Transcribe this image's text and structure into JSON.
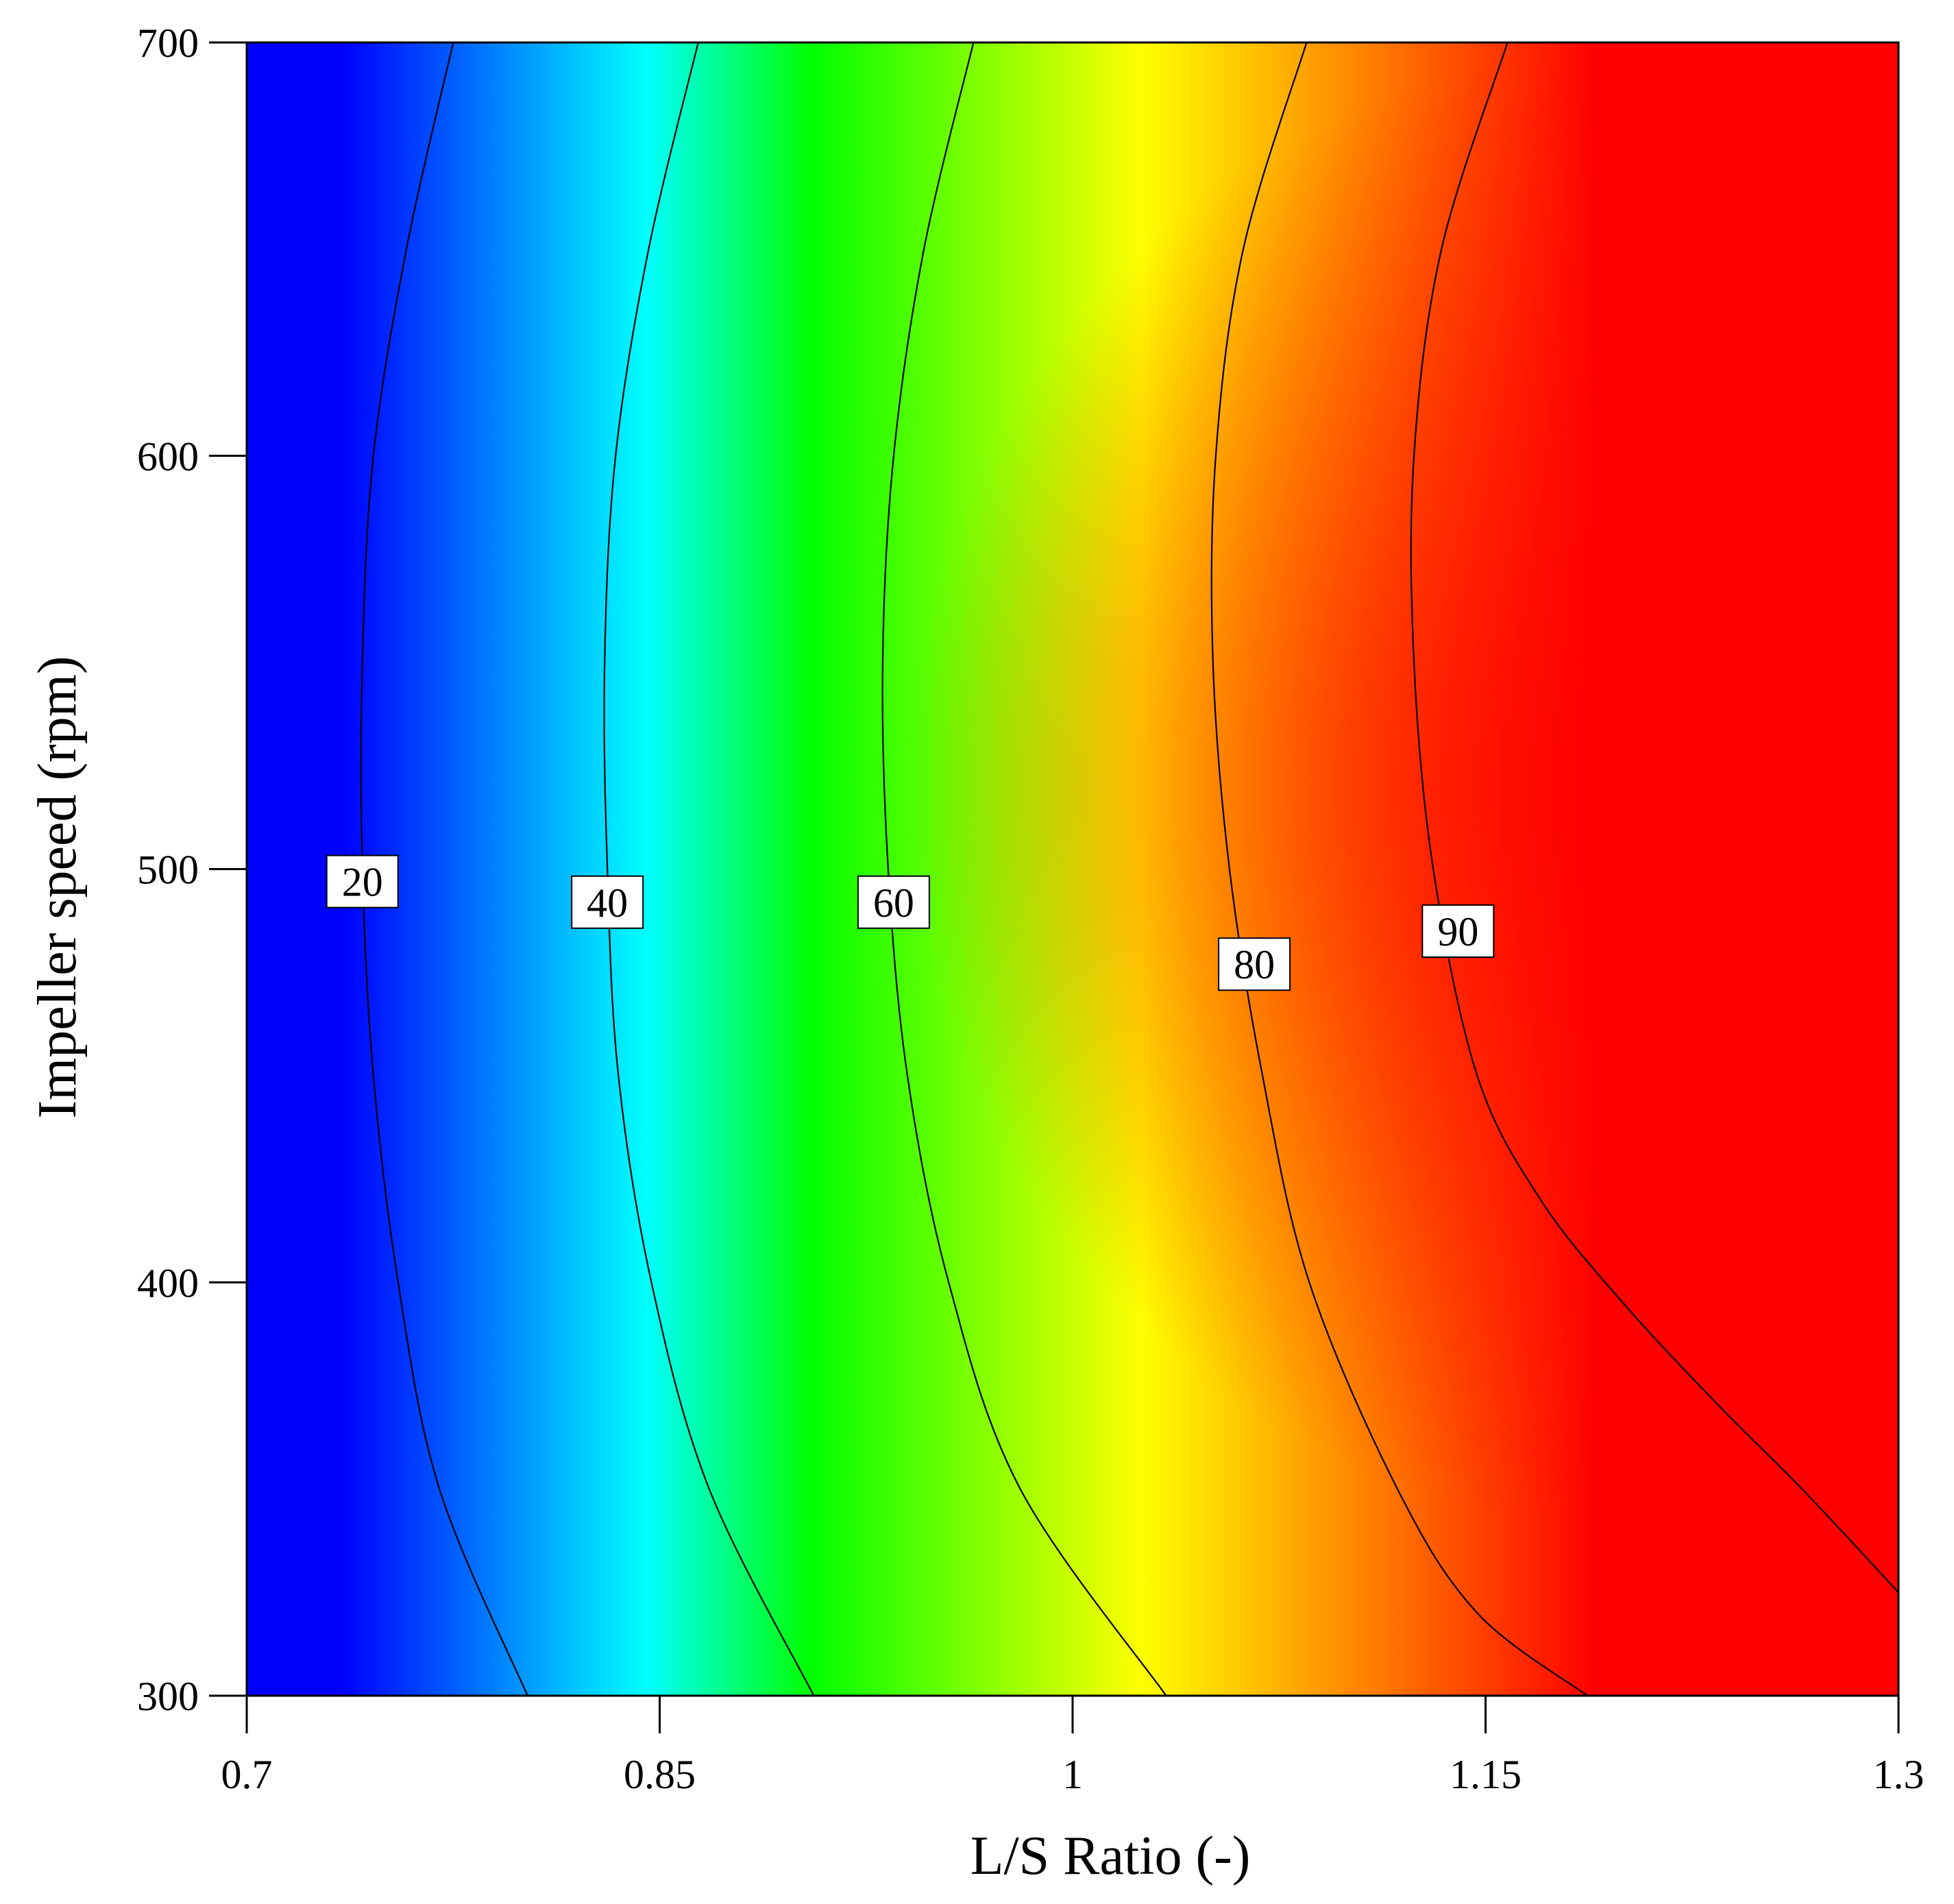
{
  "chart_data": {
    "type": "contour",
    "title": "",
    "xlabel": "L/S Ratio (-)",
    "ylabel": "Impeller speed (rpm)",
    "xlim": [
      0.7,
      1.3
    ],
    "ylim": [
      300,
      700
    ],
    "xticks": [
      0.7,
      0.85,
      1,
      1.15,
      1.3
    ],
    "xtick_labels": [
      "0.7",
      "0.85",
      "1",
      "1.15",
      "1.3"
    ],
    "yticks": [
      300,
      400,
      500,
      600,
      700
    ],
    "ytick_labels": [
      "300",
      "400",
      "500",
      "600",
      "700"
    ],
    "colormap": [
      "#0000ff",
      "#00ffff",
      "#00ff00",
      "#ffff00",
      "#ff0000"
    ],
    "color_range": [
      0,
      100
    ],
    "contours": [
      {
        "level": 20,
        "label": "20",
        "label_at": [
          0.742,
          497
        ],
        "points": [
          [
            0.775,
            700
          ],
          [
            0.758,
            650
          ],
          [
            0.746,
            600
          ],
          [
            0.742,
            550
          ],
          [
            0.742,
            500
          ],
          [
            0.746,
            450
          ],
          [
            0.755,
            400
          ],
          [
            0.77,
            350
          ],
          [
            0.802,
            300
          ]
        ]
      },
      {
        "level": 40,
        "label": "40",
        "label_at": [
          0.831,
          492
        ],
        "points": [
          [
            0.864,
            700
          ],
          [
            0.846,
            650
          ],
          [
            0.834,
            600
          ],
          [
            0.83,
            550
          ],
          [
            0.831,
            500
          ],
          [
            0.835,
            450
          ],
          [
            0.847,
            400
          ],
          [
            0.868,
            350
          ],
          [
            0.906,
            300
          ]
        ]
      },
      {
        "level": 60,
        "label": "60",
        "label_at": [
          0.935,
          492
        ],
        "points": [
          [
            0.964,
            700
          ],
          [
            0.946,
            650
          ],
          [
            0.935,
            600
          ],
          [
            0.931,
            550
          ],
          [
            0.933,
            500
          ],
          [
            0.94,
            450
          ],
          [
            0.955,
            400
          ],
          [
            0.981,
            350
          ],
          [
            1.034,
            300
          ]
        ]
      },
      {
        "level": 80,
        "label": "80",
        "label_at": [
          1.066,
          477
        ],
        "points": [
          [
            1.085,
            700
          ],
          [
            1.062,
            650
          ],
          [
            1.052,
            600
          ],
          [
            1.051,
            550
          ],
          [
            1.057,
            500
          ],
          [
            1.069,
            450
          ],
          [
            1.086,
            400
          ],
          [
            1.118,
            350
          ],
          [
            1.147,
            320
          ],
          [
            1.187,
            300
          ]
        ]
      },
      {
        "level": 90,
        "label": "90",
        "label_at": [
          1.14,
          485
        ],
        "points": [
          [
            1.158,
            700
          ],
          [
            1.134,
            650
          ],
          [
            1.124,
            600
          ],
          [
            1.124,
            550
          ],
          [
            1.131,
            500
          ],
          [
            1.147,
            450
          ],
          [
            1.17,
            420
          ],
          [
            1.2,
            395
          ],
          [
            1.235,
            370
          ],
          [
            1.265,
            350
          ],
          [
            1.3,
            325
          ]
        ]
      }
    ]
  }
}
